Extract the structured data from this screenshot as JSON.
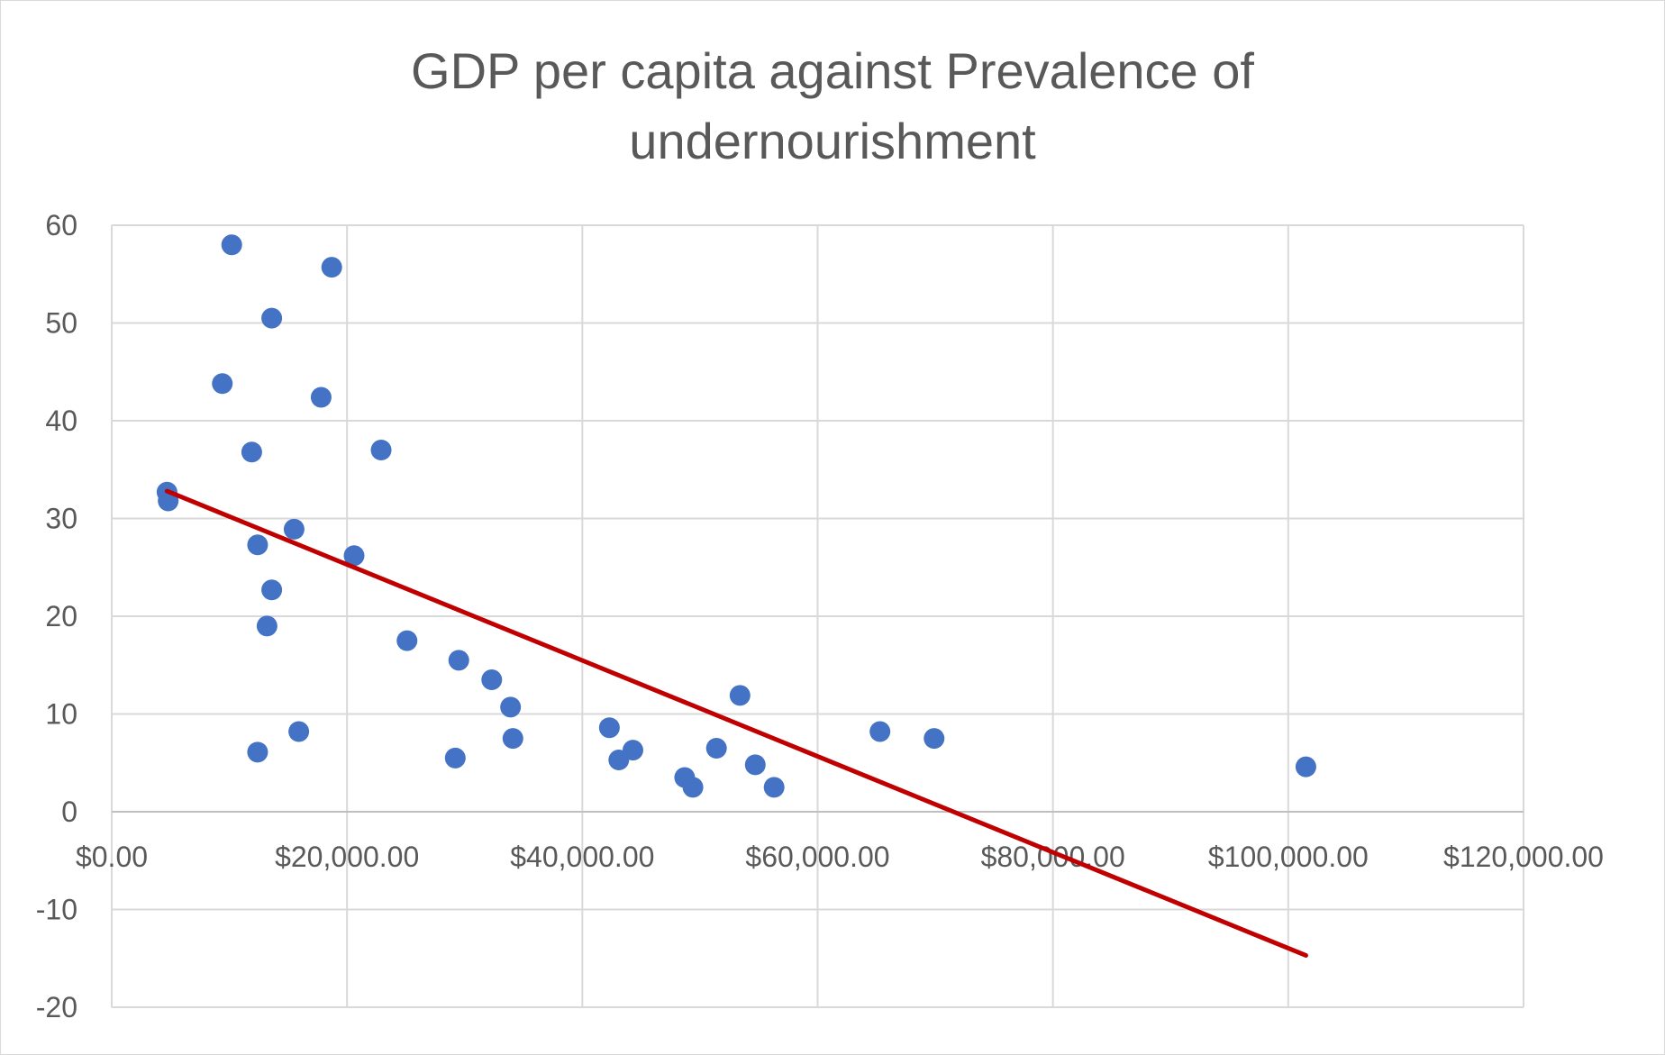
{
  "chart_data": {
    "type": "scatter",
    "title_lines": [
      "GDP per capita against Prevalence of",
      "undernourishment"
    ],
    "xlabel": "",
    "ylabel": "",
    "xlim": [
      0,
      120000
    ],
    "ylim": [
      -20,
      60
    ],
    "x_ticks": [
      0,
      20000,
      40000,
      60000,
      80000,
      100000,
      120000
    ],
    "x_tick_labels": [
      "$0.00",
      "$20,000.00",
      "$40,000.00",
      "$60,000.00",
      "$80,000.00",
      "$100,000.00",
      "$120,000.00"
    ],
    "y_ticks": [
      60,
      50,
      40,
      30,
      20,
      10,
      0,
      -10,
      -20
    ],
    "y_tick_labels": [
      "60",
      "50",
      "40",
      "30",
      "20",
      "10",
      "0",
      "-10",
      "-20"
    ],
    "grid": true,
    "marker_color": "#4472C4",
    "trendline_color": "#C00000",
    "points": [
      {
        "x": 10200,
        "y": 58.0
      },
      {
        "x": 18700,
        "y": 55.7
      },
      {
        "x": 13600,
        "y": 50.5
      },
      {
        "x": 9400,
        "y": 43.8
      },
      {
        "x": 17800,
        "y": 42.4
      },
      {
        "x": 11900,
        "y": 36.8
      },
      {
        "x": 22900,
        "y": 37.0
      },
      {
        "x": 4700,
        "y": 32.7
      },
      {
        "x": 4800,
        "y": 31.8
      },
      {
        "x": 15500,
        "y": 28.9
      },
      {
        "x": 12400,
        "y": 27.3
      },
      {
        "x": 20600,
        "y": 26.2
      },
      {
        "x": 13600,
        "y": 22.7
      },
      {
        "x": 13200,
        "y": 19.0
      },
      {
        "x": 25100,
        "y": 17.5
      },
      {
        "x": 29500,
        "y": 15.5
      },
      {
        "x": 32300,
        "y": 13.5
      },
      {
        "x": 33900,
        "y": 10.7
      },
      {
        "x": 53400,
        "y": 11.9
      },
      {
        "x": 34100,
        "y": 7.5
      },
      {
        "x": 42300,
        "y": 8.6
      },
      {
        "x": 15900,
        "y": 8.2
      },
      {
        "x": 12400,
        "y": 6.1
      },
      {
        "x": 29200,
        "y": 5.5
      },
      {
        "x": 43100,
        "y": 5.3
      },
      {
        "x": 44300,
        "y": 6.3
      },
      {
        "x": 51400,
        "y": 6.5
      },
      {
        "x": 54700,
        "y": 4.8
      },
      {
        "x": 48700,
        "y": 3.5
      },
      {
        "x": 49400,
        "y": 2.5
      },
      {
        "x": 56300,
        "y": 2.5
      },
      {
        "x": 65300,
        "y": 8.2
      },
      {
        "x": 69900,
        "y": 7.5
      },
      {
        "x": 101500,
        "y": 4.6
      }
    ],
    "trendline": {
      "type": "linear",
      "x": [
        4700,
        101500
      ],
      "y": [
        32.8,
        -14.7
      ]
    }
  }
}
